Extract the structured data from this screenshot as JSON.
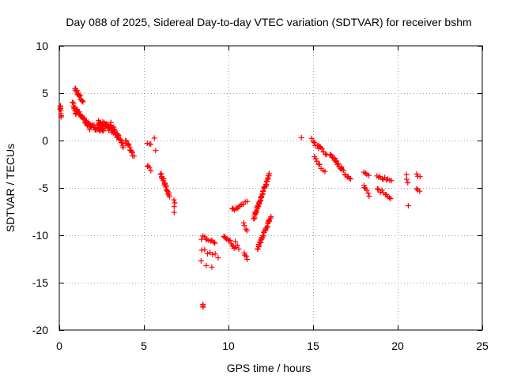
{
  "chart_data": {
    "type": "scatter",
    "title": "Day 088 of 2025, Sidereal Day-to-day VTEC variation (SDTVAR) for receiver bshm",
    "xlabel": "GPS time / hours",
    "ylabel": "SDTVAR / TECUs",
    "xlim": [
      0,
      25
    ],
    "ylim": [
      -20,
      10
    ],
    "xticks": [
      0,
      5,
      10,
      15,
      20,
      25
    ],
    "yticks": [
      10,
      5,
      0,
      -5,
      -10,
      -15,
      -20
    ],
    "grid": true,
    "marker": "plus",
    "color": "#ff0000",
    "series": [
      {
        "name": "SDTVAR",
        "segments": [
          {
            "x0": 0.05,
            "x1": 0.1,
            "y0": 3.6,
            "y1": 2.6,
            "spread": 0.4,
            "n": 8
          },
          {
            "x0": 0.8,
            "x1": 1.0,
            "y0": 3.9,
            "y1": 2.8,
            "spread": 0.5,
            "n": 10
          },
          {
            "x0": 0.9,
            "x1": 1.4,
            "y0": 5.5,
            "y1": 4.2,
            "spread": 0.4,
            "n": 16
          },
          {
            "x0": 1.0,
            "x1": 1.8,
            "y0": 3.2,
            "y1": 1.4,
            "spread": 0.5,
            "n": 28
          },
          {
            "x0": 1.6,
            "x1": 2.6,
            "y0": 1.8,
            "y1": 1.0,
            "spread": 0.5,
            "n": 32
          },
          {
            "x0": 2.3,
            "x1": 3.2,
            "y0": 2.0,
            "y1": 1.0,
            "spread": 0.6,
            "n": 34
          },
          {
            "x0": 3.0,
            "x1": 3.5,
            "y0": 1.8,
            "y1": 0.3,
            "spread": 0.6,
            "n": 18
          },
          {
            "x0": 3.4,
            "x1": 3.8,
            "y0": 0.6,
            "y1": -0.6,
            "spread": 0.4,
            "n": 10
          },
          {
            "x0": 3.9,
            "x1": 4.4,
            "y0": 0.0,
            "y1": -1.6,
            "spread": 0.4,
            "n": 14
          },
          {
            "x0": 5.2,
            "x1": 5.4,
            "y0": -0.2,
            "y1": -0.5,
            "spread": 0.2,
            "n": 3
          },
          {
            "x0": 5.6,
            "x1": 5.7,
            "y0": 0.2,
            "y1": -1.0,
            "spread": 0.2,
            "n": 2
          },
          {
            "x0": 5.2,
            "x1": 5.4,
            "y0": -2.6,
            "y1": -3.1,
            "spread": 0.3,
            "n": 4
          },
          {
            "x0": 6.0,
            "x1": 6.5,
            "y0": -3.4,
            "y1": -5.8,
            "spread": 0.4,
            "n": 22
          },
          {
            "x0": 6.8,
            "x1": 6.8,
            "y0": -6.2,
            "y1": -7.5,
            "spread": 0.2,
            "n": 4
          },
          {
            "x0": 8.5,
            "x1": 8.5,
            "y0": -17.3,
            "y1": -17.6,
            "spread": 0.1,
            "n": 3
          },
          {
            "x0": 8.4,
            "x1": 9.2,
            "y0": -10.2,
            "y1": -10.8,
            "spread": 0.5,
            "n": 10
          },
          {
            "x0": 8.4,
            "x1": 9.4,
            "y0": -11.6,
            "y1": -12.2,
            "spread": 0.4,
            "n": 7
          },
          {
            "x0": 8.4,
            "x1": 9.0,
            "y0": -12.8,
            "y1": -13.3,
            "spread": 0.3,
            "n": 3
          },
          {
            "x0": 9.7,
            "x1": 10.4,
            "y0": -10.0,
            "y1": -11.3,
            "spread": 0.4,
            "n": 12
          },
          {
            "x0": 10.2,
            "x1": 10.7,
            "y0": -7.3,
            "y1": -6.9,
            "spread": 0.3,
            "n": 8
          },
          {
            "x0": 10.4,
            "x1": 10.6,
            "y0": -10.5,
            "y1": -11.3,
            "spread": 0.3,
            "n": 3
          },
          {
            "x0": 10.8,
            "x1": 11.1,
            "y0": -6.7,
            "y1": -6.5,
            "spread": 0.2,
            "n": 4
          },
          {
            "x0": 10.9,
            "x1": 11.1,
            "y0": -8.8,
            "y1": -9.6,
            "spread": 0.3,
            "n": 4
          },
          {
            "x0": 10.9,
            "x1": 11.1,
            "y0": -11.8,
            "y1": -12.4,
            "spread": 0.3,
            "n": 4
          },
          {
            "x0": 11.5,
            "x1": 12.4,
            "y0": -8.2,
            "y1": -3.6,
            "spread": 0.3,
            "n": 45
          },
          {
            "x0": 11.7,
            "x1": 12.5,
            "y0": -11.5,
            "y1": -8.0,
            "spread": 0.3,
            "n": 30
          },
          {
            "x0": 14.3,
            "x1": 14.3,
            "y0": 0.3,
            "y1": 0.3,
            "spread": 0.0,
            "n": 1
          },
          {
            "x0": 14.9,
            "x1": 15.3,
            "y0": 0.2,
            "y1": -0.8,
            "spread": 0.3,
            "n": 6
          },
          {
            "x0": 15.3,
            "x1": 15.8,
            "y0": -0.6,
            "y1": -1.4,
            "spread": 0.3,
            "n": 8
          },
          {
            "x0": 15.1,
            "x1": 15.4,
            "y0": -1.8,
            "y1": -2.6,
            "spread": 0.3,
            "n": 5
          },
          {
            "x0": 15.5,
            "x1": 15.7,
            "y0": -2.9,
            "y1": -3.3,
            "spread": 0.2,
            "n": 3
          },
          {
            "x0": 16.0,
            "x1": 16.7,
            "y0": -1.4,
            "y1": -3.0,
            "spread": 0.4,
            "n": 16
          },
          {
            "x0": 16.6,
            "x1": 17.2,
            "y0": -2.8,
            "y1": -4.2,
            "spread": 0.4,
            "n": 10
          },
          {
            "x0": 18.0,
            "x1": 18.3,
            "y0": -3.2,
            "y1": -3.6,
            "spread": 0.3,
            "n": 4
          },
          {
            "x0": 18.0,
            "x1": 18.3,
            "y0": -4.6,
            "y1": -5.8,
            "spread": 0.3,
            "n": 6
          },
          {
            "x0": 18.8,
            "x1": 19.6,
            "y0": -3.8,
            "y1": -4.2,
            "spread": 0.3,
            "n": 10
          },
          {
            "x0": 18.8,
            "x1": 19.6,
            "y0": -5.0,
            "y1": -6.2,
            "spread": 0.4,
            "n": 10
          },
          {
            "x0": 20.5,
            "x1": 20.6,
            "y0": -3.5,
            "y1": -4.4,
            "spread": 0.3,
            "n": 3
          },
          {
            "x0": 20.6,
            "x1": 20.6,
            "y0": -6.9,
            "y1": -6.9,
            "spread": 0.1,
            "n": 1
          },
          {
            "x0": 21.1,
            "x1": 21.3,
            "y0": -3.5,
            "y1": -3.9,
            "spread": 0.2,
            "n": 3
          },
          {
            "x0": 21.1,
            "x1": 21.3,
            "y0": -5.1,
            "y1": -5.4,
            "spread": 0.2,
            "n": 3
          }
        ]
      }
    ]
  }
}
